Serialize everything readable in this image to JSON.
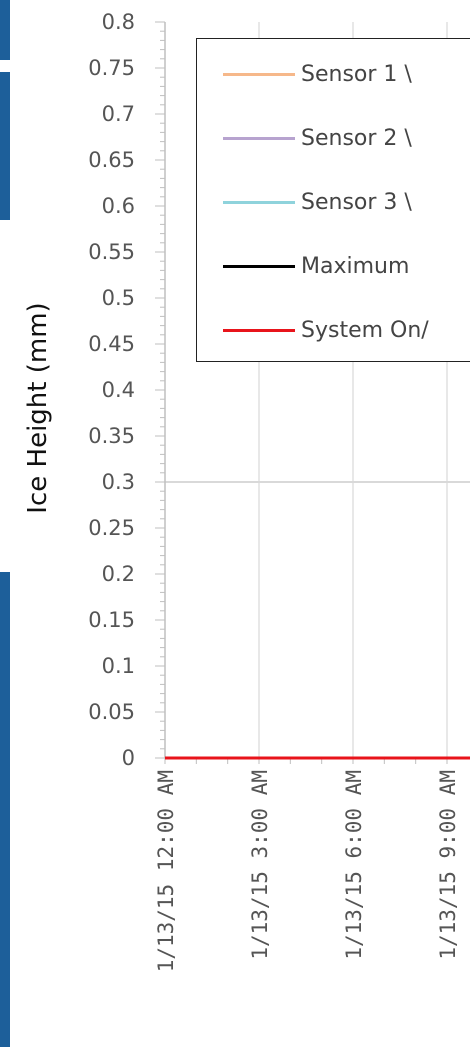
{
  "chart_data": {
    "type": "line",
    "title": "",
    "ylabel": "Ice Height (mm)",
    "xlabel": "",
    "ylim": [
      0,
      0.8
    ],
    "y_ticks": [
      "0",
      "0.05",
      "0.1",
      "0.15",
      "0.2",
      "0.25",
      "0.3",
      "0.35",
      "0.4",
      "0.45",
      "0.5",
      "0.55",
      "0.6",
      "0.65",
      "0.7",
      "0.75",
      "0.8"
    ],
    "x_ticks": [
      "1/13/15 12:00 AM",
      "1/13/15 3:00 AM",
      "1/13/15 6:00 AM",
      "1/13/15 9:00 AM"
    ],
    "grid": true,
    "legend_placement": "top-right",
    "series": [
      {
        "name": "Sensor 1 \\",
        "color": "#f6b88a",
        "values": []
      },
      {
        "name": "Sensor 2 \\",
        "color": "#b7a3cf",
        "values": []
      },
      {
        "name": "Sensor 3 \\",
        "color": "#8fd3dc",
        "values": []
      },
      {
        "name": "Maximum",
        "color": "#000000",
        "values": []
      },
      {
        "name": "System On/",
        "color": "#e8141b",
        "values": [
          0,
          0,
          0,
          0
        ]
      }
    ]
  }
}
